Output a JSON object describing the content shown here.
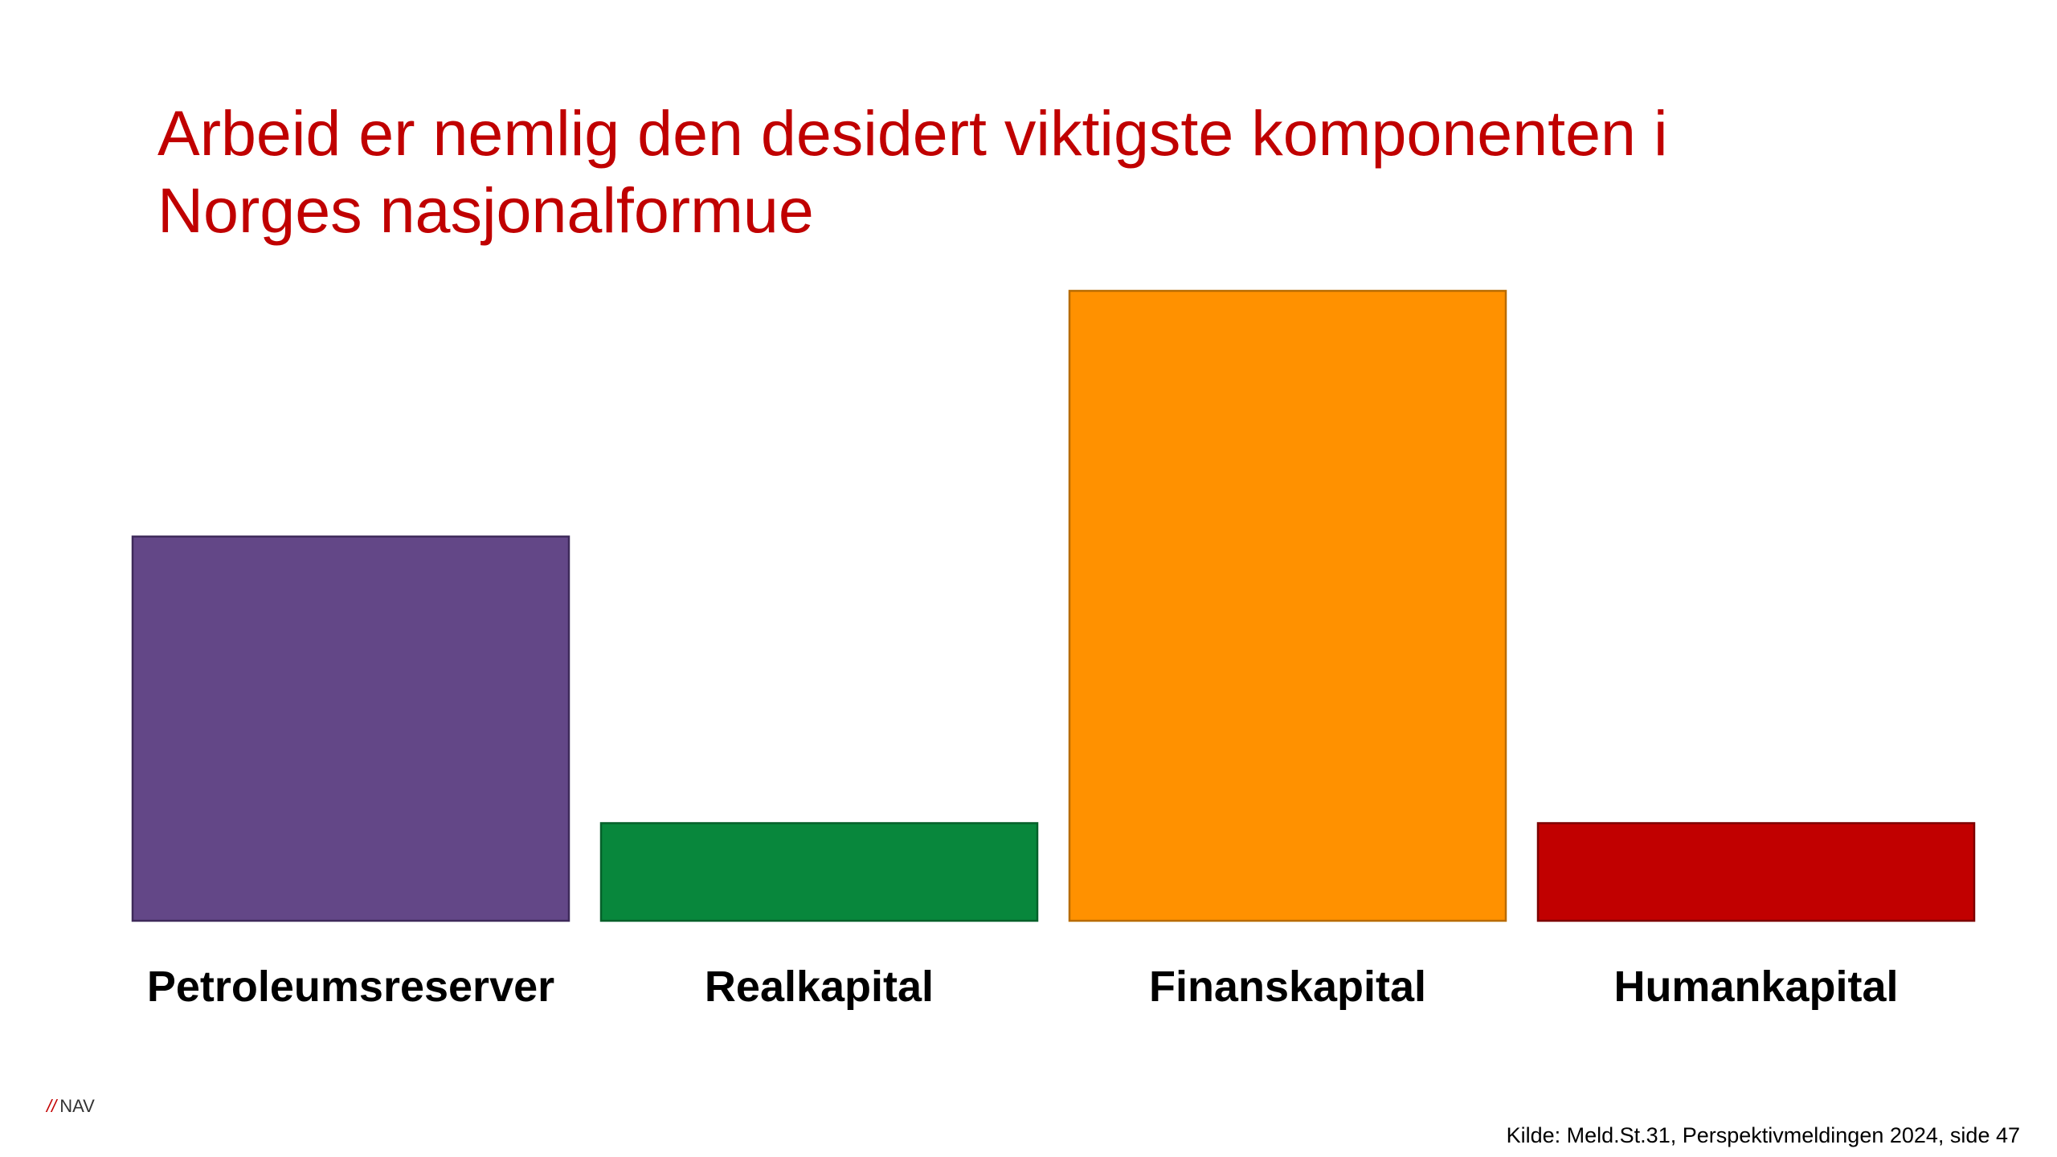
{
  "slide": {
    "title_lines": [
      "Arbeid er nemlig den desidert viktigste komponenten i",
      "Norges nasjonalformue"
    ],
    "logo_mark": "//",
    "logo_text": "NAV",
    "source": "Kilde: Meld.St.31, Perspektivmeldingen 2024, side 47"
  },
  "chart_data": {
    "type": "bar",
    "title": "",
    "xlabel": "",
    "ylabel": "",
    "categories": [
      "Petroleumsreserver",
      "Realkapital",
      "Finanskapital",
      "Humankapital"
    ],
    "values": [
      61,
      15.5,
      100,
      15.5
    ],
    "ylim": [
      0,
      100
    ],
    "colors": [
      "#634787",
      "#08873c",
      "#ff9100",
      "#c10000"
    ],
    "border_colors": [
      "#3e2a5a",
      "#05602a",
      "#b86b00",
      "#7d0000"
    ],
    "grid": false,
    "legend": "none",
    "axis_ticks_shown": false
  }
}
